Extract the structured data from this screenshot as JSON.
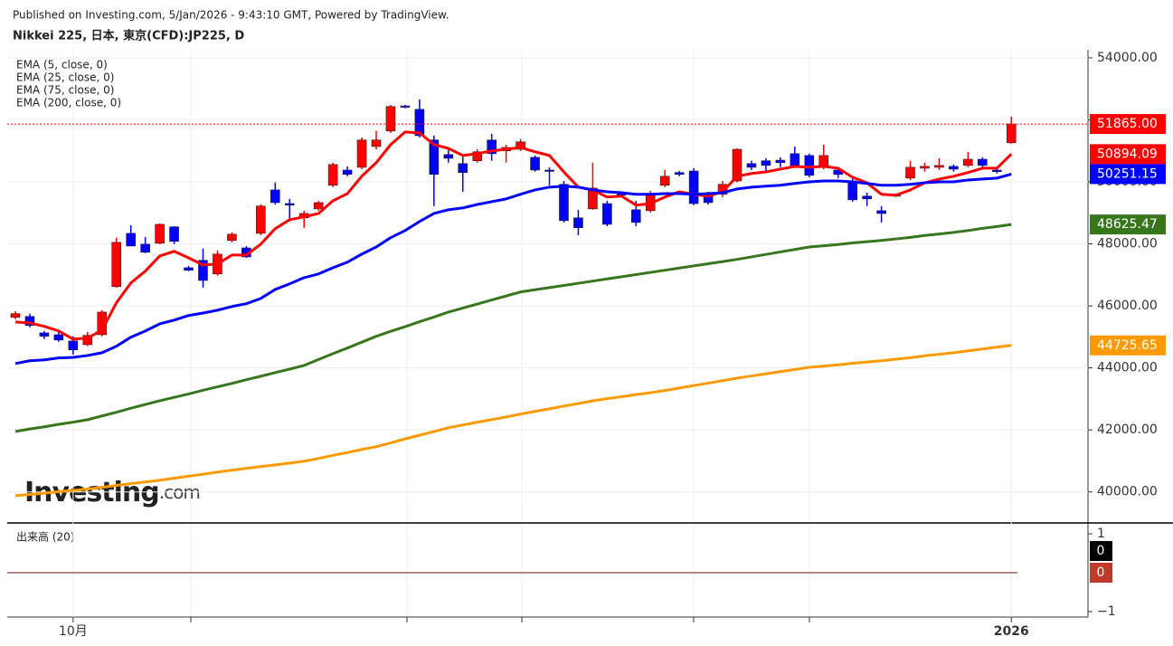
{
  "header": {
    "published": "Published on Investing.com, 5/Jan/2026 - 9:43:10 GMT, Powered by TradingView.",
    "instrument": "Nikkei 225, 日本, 東京(CFD):JP225, D"
  },
  "logo": {
    "word": "Investing",
    "suffix": ".com"
  },
  "chart_data": {
    "type": "candlestick",
    "categories": [
      null,
      null,
      null,
      null,
      "10月",
      null,
      null,
      null,
      null,
      null,
      null,
      null,
      null,
      null,
      null,
      null,
      null,
      null,
      null,
      null,
      null,
      null,
      null,
      null,
      null,
      null,
      null,
      null,
      null,
      null,
      null,
      null,
      null,
      null,
      null,
      null,
      null,
      null,
      null,
      null,
      null,
      null,
      null,
      null,
      null,
      null,
      null,
      null,
      null,
      null,
      null,
      null,
      null,
      null,
      null,
      null,
      null,
      null,
      null,
      null,
      null,
      null,
      null,
      null,
      null,
      null,
      null,
      null,
      null,
      "2026"
    ],
    "up_color": "#ff0000",
    "down_color": "#0000ff",
    "ohlc": [
      [
        45630,
        45830,
        45570,
        45750
      ],
      [
        45660,
        45750,
        45310,
        45370
      ],
      [
        45130,
        45190,
        44930,
        45020
      ],
      [
        45070,
        45160,
        44840,
        44900
      ],
      [
        44870,
        45020,
        44430,
        44580
      ],
      [
        44750,
        45160,
        44700,
        45050
      ],
      [
        45070,
        45860,
        45020,
        45800
      ],
      [
        46620,
        48200,
        46590,
        48050
      ],
      [
        48340,
        48600,
        47930,
        47930
      ],
      [
        47990,
        48220,
        47700,
        47730
      ],
      [
        48020,
        48660,
        47990,
        48630
      ],
      [
        48550,
        48570,
        47990,
        48080
      ],
      [
        47230,
        47290,
        47120,
        47150
      ],
      [
        47470,
        47850,
        46590,
        46820
      ],
      [
        47030,
        47790,
        46970,
        47670
      ],
      [
        48110,
        48370,
        48050,
        48310
      ],
      [
        47870,
        47930,
        47550,
        47580
      ],
      [
        48340,
        49270,
        48280,
        49220
      ],
      [
        49740,
        49980,
        49270,
        49330
      ],
      [
        49300,
        49450,
        48720,
        49250
      ],
      [
        48840,
        49070,
        48520,
        48980
      ],
      [
        49130,
        49390,
        49070,
        49330
      ],
      [
        49890,
        50620,
        49830,
        50560
      ],
      [
        50380,
        50500,
        50180,
        50240
      ],
      [
        50470,
        51430,
        50410,
        51350
      ],
      [
        51140,
        51640,
        51050,
        51350
      ],
      [
        51640,
        52480,
        51580,
        52430
      ],
      [
        52450,
        52480,
        52370,
        52430
      ],
      [
        52340,
        52660,
        51430,
        51490
      ],
      [
        51350,
        51490,
        49220,
        50240
      ],
      [
        50880,
        51050,
        50620,
        50760
      ],
      [
        50590,
        50820,
        49680,
        50300
      ],
      [
        50680,
        51050,
        50620,
        50970
      ],
      [
        51350,
        51550,
        50680,
        50910
      ],
      [
        51000,
        51200,
        50620,
        51110
      ],
      [
        51050,
        51380,
        51000,
        51290
      ],
      [
        50790,
        50850,
        50330,
        50380
      ],
      [
        50380,
        50470,
        49890,
        50350
      ],
      [
        49920,
        50030,
        48690,
        48750
      ],
      [
        48840,
        49100,
        48280,
        48520
      ],
      [
        49130,
        50620,
        49100,
        49800
      ],
      [
        49300,
        49390,
        48570,
        48630
      ],
      [
        49630,
        49680,
        49510,
        49570
      ],
      [
        49100,
        49390,
        48570,
        48690
      ],
      [
        49070,
        49710,
        49010,
        49630
      ],
      [
        49890,
        50380,
        49830,
        50180
      ],
      [
        50300,
        50350,
        50180,
        50240
      ],
      [
        50350,
        50440,
        49250,
        49300
      ],
      [
        49600,
        49680,
        49270,
        49330
      ],
      [
        49600,
        50030,
        49510,
        49920
      ],
      [
        50030,
        51080,
        49980,
        51050
      ],
      [
        50590,
        50680,
        50380,
        50470
      ],
      [
        50680,
        50760,
        50350,
        50530
      ],
      [
        50700,
        50790,
        50470,
        50620
      ],
      [
        50910,
        51140,
        50470,
        50530
      ],
      [
        50850,
        50910,
        50150,
        50210
      ],
      [
        50470,
        51200,
        50410,
        50850
      ],
      [
        50380,
        50470,
        50120,
        50240
      ],
      [
        50030,
        50180,
        49360,
        49420
      ],
      [
        49540,
        49650,
        49220,
        49450
      ],
      [
        49070,
        49220,
        48690,
        48980
      ],
      [
        49600,
        49630,
        49510,
        49540
      ],
      [
        50120,
        50680,
        50060,
        50470
      ],
      [
        50440,
        50620,
        50330,
        50500
      ],
      [
        50470,
        50760,
        50380,
        50530
      ],
      [
        50500,
        50560,
        50330,
        50410
      ],
      [
        50530,
        50970,
        50470,
        50730
      ],
      [
        50730,
        50790,
        50470,
        50530
      ],
      [
        50380,
        50440,
        50270,
        50330
      ],
      [
        51260,
        52100,
        51230,
        51865
      ]
    ],
    "close_label": "51865.00",
    "series": [
      {
        "name": "EMA (5, close, 0)",
        "color": "#ff0000",
        "values": [
          45480,
          45450,
          45340,
          45190,
          44930,
          44960,
          45220,
          46100,
          46740,
          47120,
          47610,
          47760,
          47550,
          47320,
          47350,
          47640,
          47640,
          47990,
          48490,
          48780,
          48870,
          48980,
          49390,
          49620,
          50180,
          50620,
          51200,
          51610,
          51580,
          51200,
          51080,
          50850,
          50910,
          51000,
          51050,
          51110,
          50970,
          50850,
          50320,
          49830,
          49740,
          49510,
          49540,
          49250,
          49300,
          49510,
          49680,
          49600,
          49540,
          49680,
          50180,
          50270,
          50320,
          50410,
          50500,
          50470,
          50500,
          50440,
          50150,
          49970,
          49600,
          49570,
          49740,
          49970,
          50090,
          50180,
          50300,
          50440,
          50440,
          50894.09
        ]
      },
      {
        "name": "EMA (25, close, 0)",
        "color": "#0000ff",
        "values": [
          44140,
          44230,
          44260,
          44320,
          44340,
          44400,
          44490,
          44700,
          44990,
          45190,
          45420,
          45540,
          45690,
          45770,
          45860,
          45980,
          46070,
          46240,
          46530,
          46710,
          46910,
          47030,
          47230,
          47410,
          47670,
          47900,
          48200,
          48430,
          48720,
          48980,
          49100,
          49160,
          49270,
          49360,
          49450,
          49600,
          49740,
          49830,
          49860,
          49830,
          49740,
          49680,
          49650,
          49600,
          49600,
          49620,
          49620,
          49600,
          49620,
          49650,
          49770,
          49830,
          49860,
          49890,
          49950,
          50000,
          50030,
          50030,
          50000,
          49950,
          49890,
          49890,
          49920,
          49970,
          50000,
          50000,
          50060,
          50090,
          50120,
          50251.15
        ]
      },
      {
        "name": "EMA (75, close, 0)",
        "color": "#38761d",
        "values": [
          41950,
          42030,
          42100,
          42180,
          42250,
          42330,
          42450,
          42570,
          42700,
          42820,
          42940,
          43050,
          43160,
          43280,
          43390,
          43500,
          43620,
          43730,
          43850,
          43960,
          44080,
          44270,
          44460,
          44640,
          44830,
          45020,
          45180,
          45330,
          45490,
          45640,
          45800,
          45930,
          46060,
          46190,
          46320,
          46450,
          46520,
          46590,
          46660,
          46730,
          46800,
          46870,
          46940,
          47010,
          47080,
          47150,
          47220,
          47290,
          47360,
          47430,
          47500,
          47580,
          47660,
          47740,
          47820,
          47900,
          47940,
          47980,
          48030,
          48070,
          48110,
          48160,
          48210,
          48270,
          48320,
          48370,
          48430,
          48500,
          48560,
          48625.47
        ]
      },
      {
        "name": "EMA (200, close, 0)",
        "color": "#ff9900",
        "values": [
          39880,
          39920,
          39960,
          40010,
          40050,
          40090,
          40150,
          40210,
          40270,
          40320,
          40380,
          40440,
          40510,
          40570,
          40640,
          40700,
          40760,
          40820,
          40870,
          40930,
          40990,
          41080,
          41180,
          41270,
          41370,
          41460,
          41580,
          41710,
          41830,
          41950,
          42070,
          42160,
          42250,
          42330,
          42420,
          42510,
          42600,
          42680,
          42770,
          42850,
          42940,
          43010,
          43070,
          43140,
          43200,
          43270,
          43350,
          43430,
          43510,
          43590,
          43670,
          43740,
          43810,
          43880,
          43950,
          44020,
          44060,
          44100,
          44150,
          44190,
          44230,
          44280,
          44330,
          44390,
          44440,
          44490,
          44550,
          44610,
          44670,
          44725.65
        ]
      }
    ],
    "ylim": [
      39000,
      54260
    ],
    "yticks": [
      {
        "value": 40000,
        "label": "40000.00"
      },
      {
        "value": 42000,
        "label": "42000.00"
      },
      {
        "value": 44000,
        "label": "44000.00"
      },
      {
        "value": 46000,
        "label": "46000.00"
      },
      {
        "value": 48000,
        "label": "48000.00"
      },
      {
        "value": 50000,
        "label": "50000.00"
      },
      {
        "value": 52000,
        "label": "52000.00"
      },
      {
        "value": 54000,
        "label": "54000.00"
      }
    ],
    "grid": true,
    "volume": {
      "title": "出来高 (20)",
      "value": 0,
      "ma": 0,
      "color": "#000000",
      "ma_color": "#c0392b",
      "ylim": [
        -1.14,
        1.28
      ],
      "yticks": [
        1,
        {
          "value": -1,
          "label": "−1"
        }
      ]
    }
  }
}
